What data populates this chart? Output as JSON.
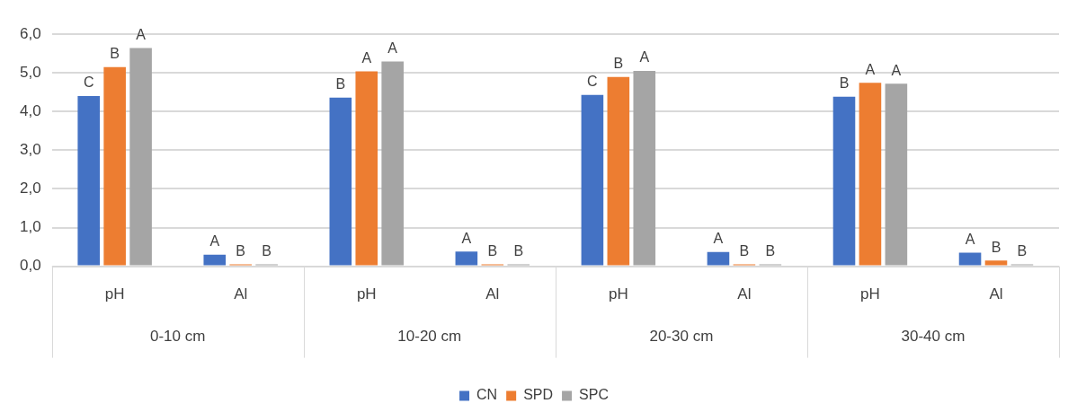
{
  "chart_data": {
    "type": "bar",
    "categories": [
      "pH",
      "Al",
      "pH",
      "Al",
      "pH",
      "Al",
      "pH",
      "Al"
    ],
    "annotations": [
      "0-10 cm",
      "10-20 cm",
      "20-30 cm",
      "30-40 cm"
    ],
    "series": [
      {
        "name": "CN",
        "color": "#4472c4",
        "values": [
          4.4,
          0.3,
          4.36,
          0.38,
          4.43,
          0.37,
          4.38,
          0.35
        ],
        "value_labels": [
          "C",
          "A",
          "B",
          "A",
          "C",
          "A",
          "B",
          "A"
        ]
      },
      {
        "name": "SPD",
        "color": "#ed7d31",
        "values": [
          5.15,
          0,
          5.04,
          0,
          4.89,
          0.03,
          4.74,
          0.15
        ],
        "value_labels": [
          "B",
          "B",
          "A",
          "B",
          "B",
          "B",
          "A",
          "B"
        ]
      },
      {
        "name": "SPC",
        "color": "#a5a5a5",
        "values": [
          5.64,
          0,
          5.29,
          0,
          5.05,
          0,
          4.72,
          0.05
        ],
        "value_labels": [
          "A",
          "B",
          "A",
          "B",
          "A",
          "B",
          "A",
          "B"
        ]
      }
    ],
    "ylim": [
      0,
      6
    ],
    "yticks": [
      {
        "value": 0,
        "label": "0,0"
      },
      {
        "value": 1,
        "label": "1,0"
      },
      {
        "value": 2,
        "label": "2,0"
      },
      {
        "value": 3,
        "label": "3,0"
      },
      {
        "value": 4,
        "label": "4,0"
      },
      {
        "value": 5,
        "label": "5,0"
      },
      {
        "value": 6,
        "label": "6,0"
      }
    ],
    "grid": "y",
    "legend": "bottom"
  }
}
